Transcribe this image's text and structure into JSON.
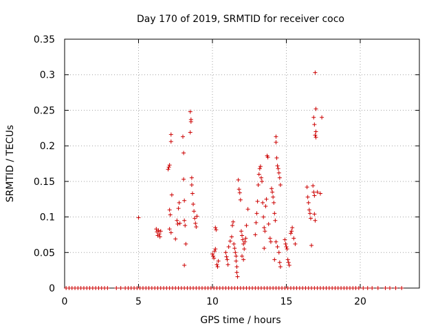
{
  "chart_data": {
    "type": "scatter",
    "title": "Day 170 of 2019, SRMTID for receiver coco",
    "xlabel": "GPS time / hours",
    "ylabel": "SRMTID / TECUs",
    "xlim": [
      0,
      24
    ],
    "ylim": [
      0,
      0.35
    ],
    "grid": true,
    "marker": "+",
    "colors": {
      "marker": "#cc0000",
      "grid": "#a0a0a0",
      "axis": "#000000"
    },
    "x_ticks": [
      {
        "value": 0,
        "label": "0"
      },
      {
        "value": 5,
        "label": "5"
      },
      {
        "value": 10,
        "label": "10"
      },
      {
        "value": 15,
        "label": "15"
      },
      {
        "value": 20,
        "label": "20"
      }
    ],
    "y_ticks": [
      {
        "value": 0,
        "label": "0"
      },
      {
        "value": 0.05,
        "label": "0.05"
      },
      {
        "value": 0.1,
        "label": "0.1"
      },
      {
        "value": 0.15,
        "label": "0.15"
      },
      {
        "value": 0.2,
        "label": "0.2"
      },
      {
        "value": 0.25,
        "label": "0.25"
      },
      {
        "value": 0.3,
        "label": "0.3"
      },
      {
        "value": 0.35,
        "label": "0.35"
      }
    ],
    "points": [
      [
        5.0,
        0.099
      ],
      [
        6.2,
        0.083
      ],
      [
        6.25,
        0.079
      ],
      [
        6.3,
        0.074
      ],
      [
        6.35,
        0.081
      ],
      [
        6.4,
        0.076
      ],
      [
        6.45,
        0.072
      ],
      [
        6.5,
        0.08
      ],
      [
        7.0,
        0.167
      ],
      [
        7.05,
        0.17
      ],
      [
        7.1,
        0.173
      ],
      [
        7.2,
        0.216
      ],
      [
        7.2,
        0.206
      ],
      [
        7.25,
        0.131
      ],
      [
        7.1,
        0.11
      ],
      [
        7.15,
        0.103
      ],
      [
        7.1,
        0.083
      ],
      [
        7.2,
        0.078
      ],
      [
        7.5,
        0.069
      ],
      [
        7.6,
        0.095
      ],
      [
        7.65,
        0.09
      ],
      [
        7.7,
        0.112
      ],
      [
        7.75,
        0.12
      ],
      [
        7.8,
        0.091
      ],
      [
        8.0,
        0.213
      ],
      [
        8.05,
        0.19
      ],
      [
        8.05,
        0.153
      ],
      [
        8.1,
        0.123
      ],
      [
        8.1,
        0.095
      ],
      [
        8.15,
        0.088
      ],
      [
        8.2,
        0.062
      ],
      [
        8.1,
        0.032
      ],
      [
        8.5,
        0.248
      ],
      [
        8.55,
        0.237
      ],
      [
        8.55,
        0.234
      ],
      [
        8.5,
        0.219
      ],
      [
        8.6,
        0.155
      ],
      [
        8.6,
        0.145
      ],
      [
        8.65,
        0.133
      ],
      [
        8.7,
        0.118
      ],
      [
        8.75,
        0.108
      ],
      [
        8.8,
        0.098
      ],
      [
        8.85,
        0.091
      ],
      [
        8.9,
        0.086
      ],
      [
        8.95,
        0.101
      ],
      [
        10.0,
        0.048
      ],
      [
        10.05,
        0.045
      ],
      [
        10.1,
        0.042
      ],
      [
        10.15,
        0.052
      ],
      [
        10.2,
        0.055
      ],
      [
        10.2,
        0.085
      ],
      [
        10.25,
        0.082
      ],
      [
        10.3,
        0.033
      ],
      [
        10.35,
        0.03
      ],
      [
        10.4,
        0.038
      ],
      [
        10.9,
        0.05
      ],
      [
        10.95,
        0.044
      ],
      [
        11.0,
        0.04
      ],
      [
        11.05,
        0.033
      ],
      [
        11.1,
        0.058
      ],
      [
        11.2,
        0.066
      ],
      [
        11.3,
        0.072
      ],
      [
        11.35,
        0.088
      ],
      [
        11.4,
        0.093
      ],
      [
        11.45,
        0.062
      ],
      [
        11.5,
        0.056
      ],
      [
        11.55,
        0.05
      ],
      [
        11.6,
        0.045
      ],
      [
        11.6,
        0.038
      ],
      [
        11.65,
        0.03
      ],
      [
        11.65,
        0.022
      ],
      [
        11.7,
        0.016
      ],
      [
        11.75,
        0.152
      ],
      [
        11.8,
        0.139
      ],
      [
        11.85,
        0.134
      ],
      [
        11.9,
        0.124
      ],
      [
        11.95,
        0.08
      ],
      [
        12.0,
        0.074
      ],
      [
        12.05,
        0.068
      ],
      [
        12.1,
        0.062
      ],
      [
        12.15,
        0.055
      ],
      [
        12.2,
        0.065
      ],
      [
        12.25,
        0.07
      ],
      [
        12.3,
        0.088
      ],
      [
        12.4,
        0.111
      ],
      [
        12.0,
        0.045
      ],
      [
        12.1,
        0.04
      ],
      [
        12.9,
        0.075
      ],
      [
        12.95,
        0.092
      ],
      [
        13.0,
        0.105
      ],
      [
        13.05,
        0.122
      ],
      [
        13.1,
        0.145
      ],
      [
        13.15,
        0.16
      ],
      [
        13.2,
        0.168
      ],
      [
        13.25,
        0.171
      ],
      [
        13.3,
        0.155
      ],
      [
        13.35,
        0.15
      ],
      [
        13.4,
        0.12
      ],
      [
        13.45,
        0.1
      ],
      [
        13.5,
        0.085
      ],
      [
        13.5,
        0.056
      ],
      [
        13.55,
        0.08
      ],
      [
        13.6,
        0.115
      ],
      [
        13.65,
        0.125
      ],
      [
        13.7,
        0.186
      ],
      [
        13.75,
        0.184
      ],
      [
        13.8,
        0.09
      ],
      [
        13.9,
        0.07
      ],
      [
        13.95,
        0.065
      ],
      [
        14.0,
        0.14
      ],
      [
        14.05,
        0.135
      ],
      [
        14.1,
        0.128
      ],
      [
        14.15,
        0.12
      ],
      [
        14.2,
        0.105
      ],
      [
        14.25,
        0.095
      ],
      [
        14.3,
        0.205
      ],
      [
        14.3,
        0.213
      ],
      [
        14.35,
        0.183
      ],
      [
        14.4,
        0.172
      ],
      [
        14.45,
        0.168
      ],
      [
        14.5,
        0.162
      ],
      [
        14.55,
        0.155
      ],
      [
        14.6,
        0.145
      ],
      [
        14.3,
        0.065
      ],
      [
        14.4,
        0.058
      ],
      [
        14.5,
        0.05
      ],
      [
        14.55,
        0.036
      ],
      [
        14.6,
        0.03
      ],
      [
        14.2,
        0.04
      ],
      [
        14.9,
        0.068
      ],
      [
        14.95,
        0.062
      ],
      [
        15.0,
        0.058
      ],
      [
        15.05,
        0.055
      ],
      [
        15.1,
        0.04
      ],
      [
        15.15,
        0.036
      ],
      [
        15.2,
        0.032
      ],
      [
        15.3,
        0.077
      ],
      [
        15.35,
        0.08
      ],
      [
        15.4,
        0.085
      ],
      [
        15.5,
        0.07
      ],
      [
        15.6,
        0.062
      ],
      [
        16.4,
        0.142
      ],
      [
        16.45,
        0.128
      ],
      [
        16.5,
        0.12
      ],
      [
        16.55,
        0.11
      ],
      [
        16.6,
        0.105
      ],
      [
        16.65,
        0.098
      ],
      [
        16.7,
        0.06
      ],
      [
        16.8,
        0.144
      ],
      [
        16.85,
        0.135
      ],
      [
        16.9,
        0.13
      ],
      [
        16.9,
        0.104
      ],
      [
        16.95,
        0.095
      ],
      [
        16.85,
        0.24
      ],
      [
        16.9,
        0.23
      ],
      [
        16.95,
        0.215
      ],
      [
        17.0,
        0.212
      ],
      [
        17.0,
        0.22
      ],
      [
        16.95,
        0.303
      ],
      [
        17.0,
        0.252
      ],
      [
        17.1,
        0.135
      ],
      [
        17.3,
        0.133
      ],
      [
        17.4,
        0.24
      ]
    ],
    "zero_point_x": [
      0.1,
      0.3,
      0.5,
      0.7,
      0.9,
      1.1,
      1.3,
      1.5,
      1.7,
      1.9,
      2.1,
      2.3,
      2.5,
      2.7,
      2.9,
      3.5,
      3.8,
      4.1,
      4.3,
      4.5,
      4.7,
      4.9,
      5.1,
      5.3,
      5.5,
      5.7,
      5.9,
      6.1,
      6.3,
      6.5,
      6.7,
      6.9,
      7.1,
      7.3,
      7.5,
      7.7,
      7.9,
      8.1,
      8.3,
      8.5,
      8.7,
      8.9,
      9.1,
      9.3,
      9.5,
      9.7,
      9.9,
      10.1,
      10.3,
      10.5,
      10.7,
      10.9,
      11.1,
      11.3,
      11.5,
      11.7,
      11.9,
      12.1,
      12.3,
      12.5,
      12.7,
      12.9,
      13.1,
      13.3,
      13.5,
      13.7,
      13.9,
      14.1,
      14.3,
      14.5,
      14.7,
      14.9,
      15.1,
      15.3,
      15.5,
      15.7,
      15.9,
      16.1,
      16.3,
      16.5,
      16.7,
      16.9,
      17.1,
      17.3,
      17.5,
      17.7,
      17.9,
      18.1,
      18.3,
      18.5,
      18.7,
      18.9,
      19.1,
      19.3,
      19.5,
      19.7,
      19.9,
      20.2,
      20.5,
      20.8,
      21.2,
      21.7,
      22.0,
      22.4,
      22.8
    ]
  }
}
